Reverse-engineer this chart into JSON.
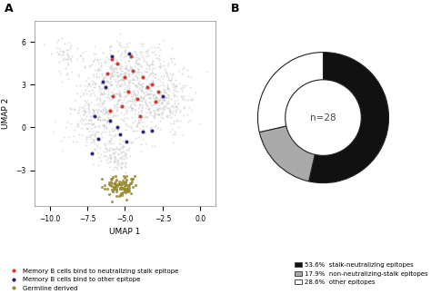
{
  "panel_a_label": "A",
  "panel_b_label": "B",
  "umap_xlim": [
    -11,
    1
  ],
  "umap_ylim": [
    -5.5,
    7.5
  ],
  "umap_xticks": [
    -10.0,
    -7.5,
    -5.0,
    -2.5,
    0.0
  ],
  "umap_yticks": [
    -3,
    0,
    3,
    6
  ],
  "umap_xlabel": "UMAP 1",
  "umap_ylabel": "UMAP 2",
  "background_color": "#ffffff",
  "scatter_bg_color": "#c8c8c8",
  "scatter_bg_alpha": 0.6,
  "red_color": "#e03020",
  "blue_color": "#202080",
  "olive_color": "#9a8a30",
  "pie_colors": [
    "#111111",
    "#aaaaaa",
    "#ffffff"
  ],
  "pie_values": [
    53.6,
    17.9,
    28.6
  ],
  "pie_labels": [
    "53.6%  stalk-neutralizing epitopes",
    "17.9%  non-neutralizing-stalk epitopes",
    "28.6%  other epitopes"
  ],
  "pie_center_text": "n=28",
  "pie_wedge_edgecolor": "#222222",
  "legend_labels_a": [
    "Memory B cells bind to neutralizing stalk epitope",
    "Memory B cells bind to other epitope",
    "Germline derived"
  ],
  "legend_colors_a": [
    "#e03020",
    "#202080",
    "#9a8a30"
  ],
  "seed": 42
}
